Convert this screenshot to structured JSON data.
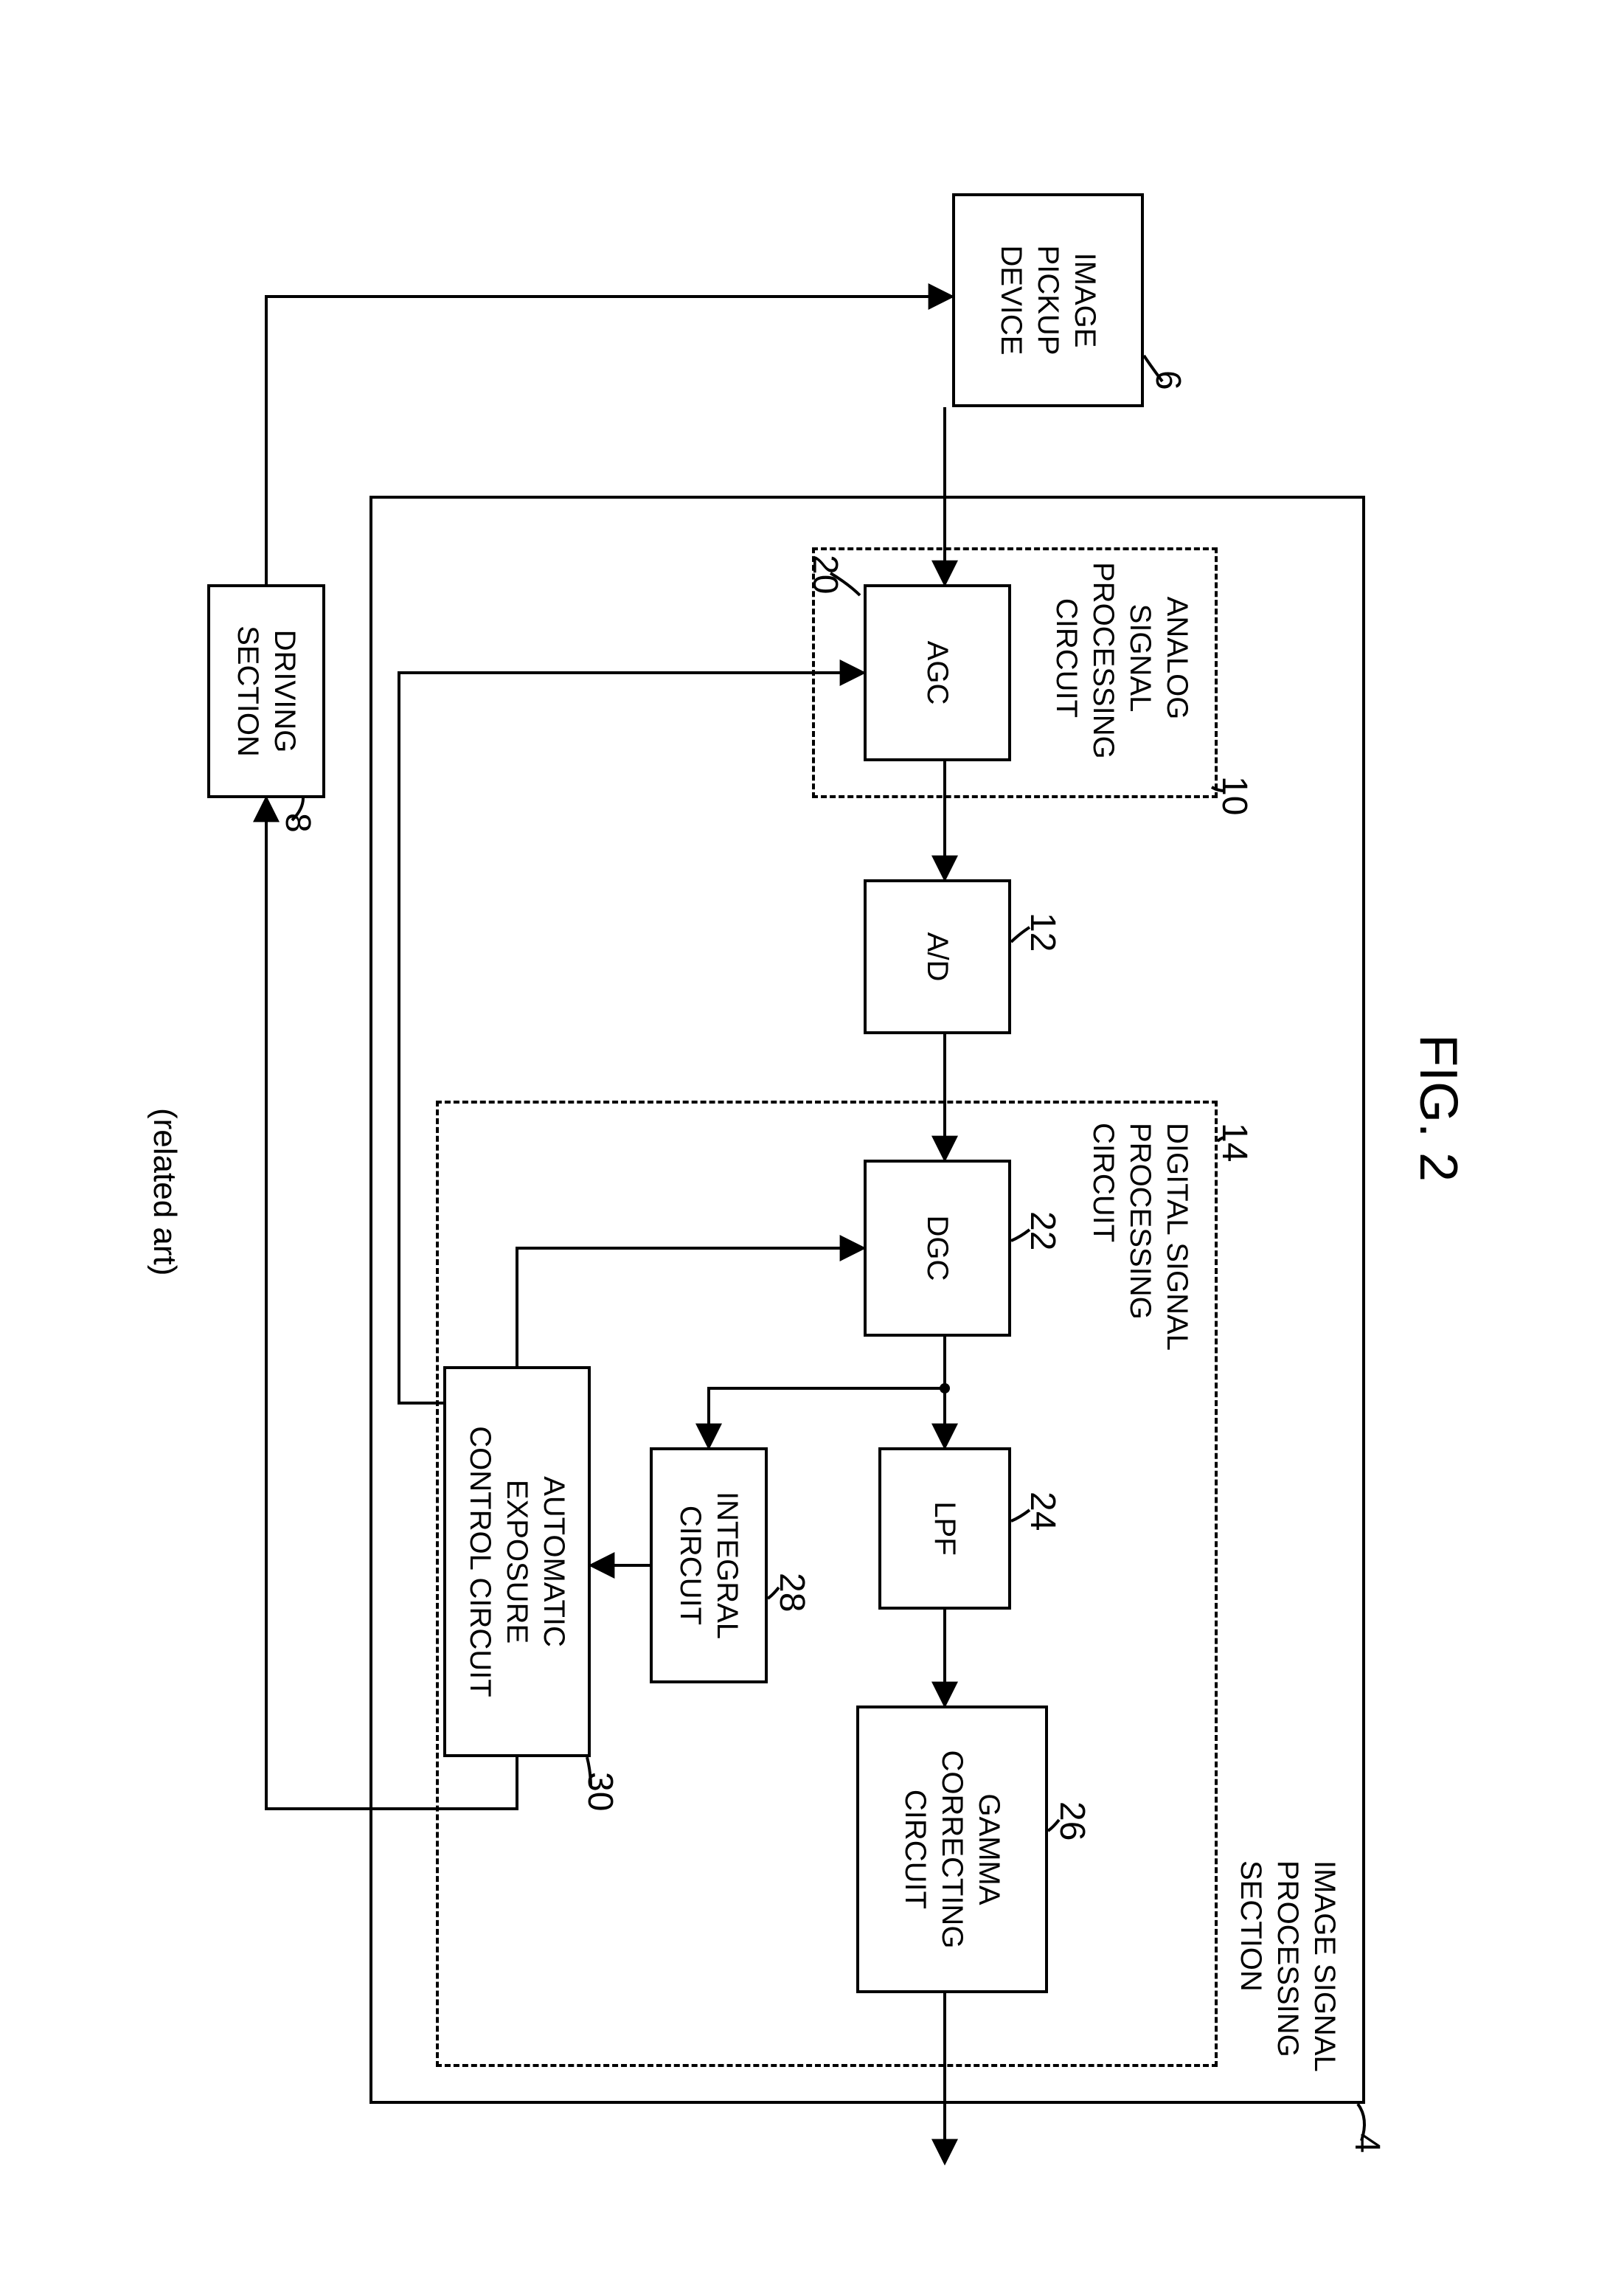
{
  "figure": {
    "title": "FIG. 2",
    "related_art": "(related art)"
  },
  "blocks": {
    "image_pickup_device": "IMAGE\nPICKUP\nDEVICE",
    "agc": "AGC",
    "ad": "A/D",
    "dgc": "DGC",
    "lpf": "LPF",
    "gamma": "GAMMA\nCORRECTING\nCIRCUIT",
    "integral": "INTEGRAL\nCIRCUIT",
    "aec": "AUTOMATIC\nEXPOSURE\nCONTROL CIRCUIT",
    "driving_section": "DRIVING\nSECTION"
  },
  "groups": {
    "analog": "ANALOG\nSIGNAL\nPROCESSING\nCIRCUIT",
    "digital": "DIGITAL SIGNAL\nPROCESSING CIRCUIT",
    "image_signal_section": "IMAGE SIGNAL\nPROCESSING SECTION"
  },
  "refs": {
    "image_signal_section": "4",
    "image_pickup_device": "6",
    "driving_section": "8",
    "analog": "10",
    "ad": "12",
    "digital": "14",
    "agc": "20",
    "dgc": "22",
    "lpf": "24",
    "gamma": "26",
    "integral": "28",
    "aec": "30"
  },
  "style": {
    "stroke": "#000000",
    "stroke_width": 4,
    "arrow_size": 18
  }
}
